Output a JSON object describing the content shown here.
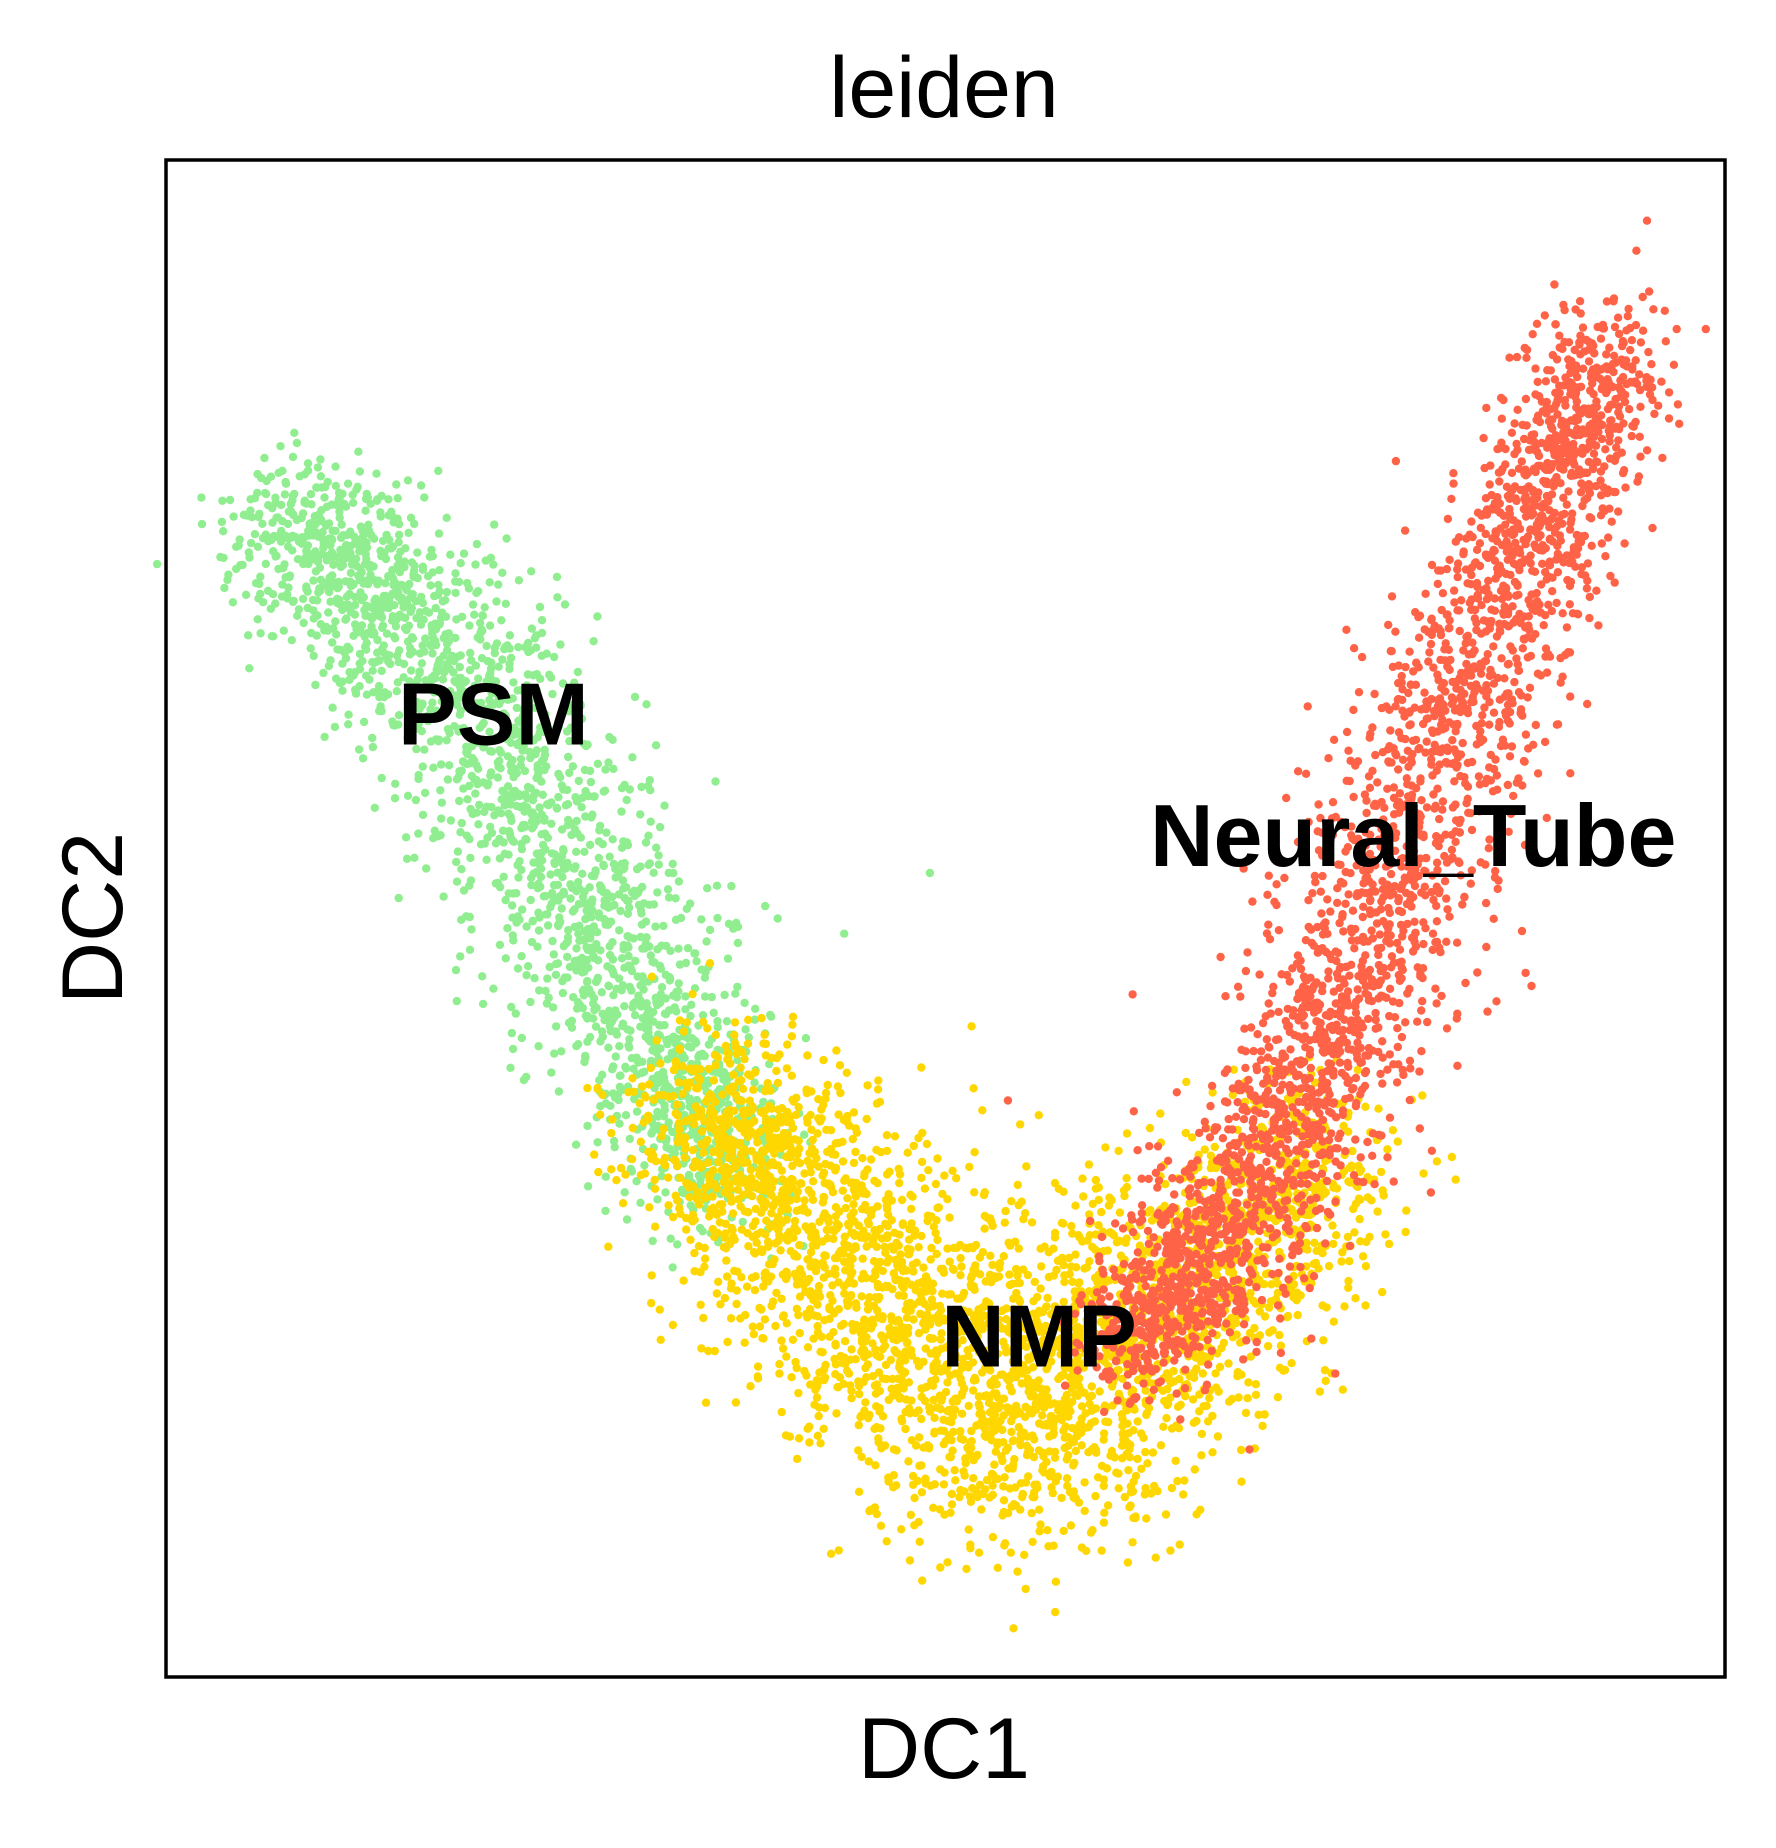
{
  "chart_data": {
    "type": "scatter",
    "title": "leiden",
    "xlabel": "DC1",
    "ylabel": "DC2",
    "xlim": [
      0,
      100
    ],
    "ylim": [
      0,
      100
    ],
    "grid": false,
    "ticks": false,
    "legend": "on data",
    "series": [
      {
        "name": "PSM",
        "color": "#90EE90",
        "spine": [
          [
            7,
            76
          ],
          [
            12,
            73
          ],
          [
            18,
            67
          ],
          [
            23,
            58
          ],
          [
            28,
            48
          ],
          [
            33,
            39
          ],
          [
            36,
            33
          ]
        ],
        "spread": 3.2,
        "count": 2200,
        "outliers": [
          [
            4.5,
            74.5
          ],
          [
            49,
            53
          ],
          [
            43.5,
            49
          ],
          [
            32.5,
            27
          ],
          [
            37,
            30
          ]
        ],
        "label_pos": [
          21,
          63
        ]
      },
      {
        "name": "NMP",
        "color": "#FFD700",
        "spine": [
          [
            34,
            37
          ],
          [
            39,
            33
          ],
          [
            44,
            26
          ],
          [
            50,
            20
          ],
          [
            56,
            18
          ],
          [
            62,
            22
          ],
          [
            68,
            28
          ],
          [
            74,
            34
          ]
        ],
        "spread": 4.3,
        "count": 3300,
        "outliers": [
          [
            45,
            39
          ],
          [
            36,
            37
          ],
          [
            48,
            10
          ]
        ],
        "label_pos": [
          56,
          22
        ]
      },
      {
        "name": "Neural_Tube",
        "color": "#FF6347",
        "spine": [
          [
            61,
            22
          ],
          [
            66,
            26
          ],
          [
            70,
            33
          ],
          [
            74,
            41
          ],
          [
            78,
            50
          ],
          [
            82,
            62
          ],
          [
            86,
            72
          ],
          [
            90,
            80
          ],
          [
            93,
            88
          ]
        ],
        "spread": 2.8,
        "count": 2800,
        "outliers": [
          [
            95,
            96
          ],
          [
            62,
            45
          ],
          [
            54,
            38
          ],
          [
            75,
            20
          ],
          [
            69.5,
            15
          ],
          [
            80,
            56
          ]
        ],
        "label_pos": [
          80,
          55
        ]
      }
    ]
  }
}
